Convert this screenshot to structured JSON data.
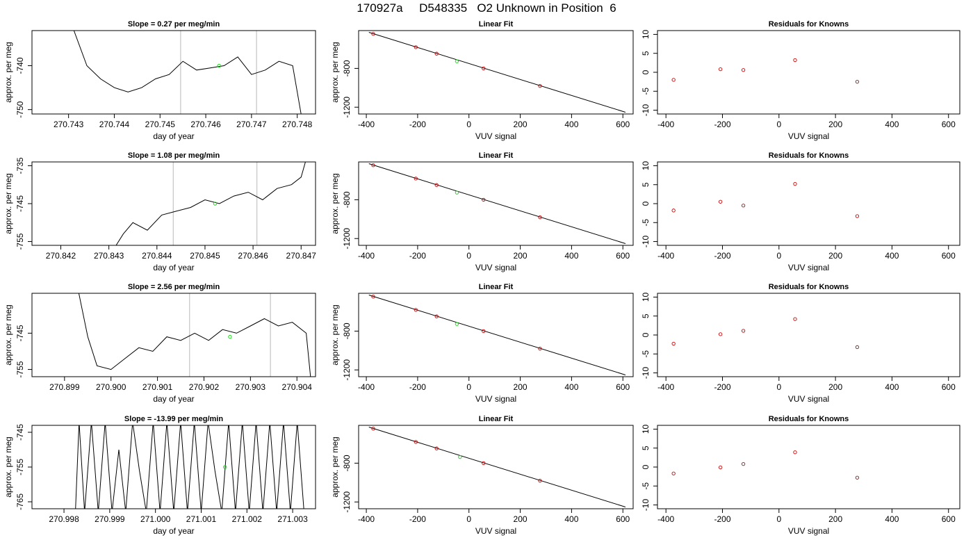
{
  "page": {
    "title": "170927a     D548335   O2 Unknown in Position  6"
  },
  "chart_data": [
    {
      "type": "line",
      "panel": "timeseries",
      "title": "Slope =  0.27  per meg/min",
      "xlabel": "day of year",
      "ylabel": "approx. per meg",
      "xlim": [
        270.7422,
        270.7484
      ],
      "ylim": [
        -751.0,
        -732.0
      ],
      "xticks": [
        270.743,
        270.744,
        270.745,
        270.746,
        270.747,
        270.748
      ],
      "xtick_labels": [
        "270.743",
        "270.744",
        "270.745",
        "270.746",
        "270.747",
        "270.748"
      ],
      "yticks": [
        -750,
        -740
      ],
      "ytick_labels": [
        "-750",
        "-740"
      ],
      "vlines": [
        270.74545,
        270.74711
      ],
      "marker": {
        "x": 270.74629,
        "y": -740.0,
        "color": "#00dd00"
      },
      "line_color": "#000000",
      "series": [
        {
          "x": [
            270.7431,
            270.7434,
            270.7437,
            270.744,
            270.7443,
            270.7446,
            270.7449,
            270.7452,
            270.7455,
            270.7458,
            270.7461,
            270.7464,
            270.7467,
            270.747,
            270.7473,
            270.7476,
            270.7479,
            270.7481
          ],
          "y": [
            -731.5,
            -740.0,
            -743.0,
            -745.0,
            -746.0,
            -745.0,
            -743.0,
            -742.0,
            -739.0,
            -741.0,
            -740.5,
            -740.0,
            -738.0,
            -742.0,
            -741.0,
            -739.0,
            -740.0,
            -752.0
          ]
        }
      ]
    },
    {
      "type": "scatter",
      "panel": "fit",
      "title": "Linear Fit",
      "xlabel": "VUV signal",
      "ylabel": "approx. per meg",
      "xlim": [
        -430,
        640
      ],
      "ylim": [
        -1270,
        -410
      ],
      "xticks": [
        -400,
        -200,
        0,
        200,
        400,
        600
      ],
      "xtick_labels": [
        "-400",
        "-200",
        "0",
        "200",
        "400",
        "600"
      ],
      "yticks": [
        -1200,
        -800
      ],
      "ytick_labels": [
        "-1200",
        "-800"
      ],
      "fit_line": {
        "x": [
          -390,
          610
        ],
        "y": [
          -428,
          -1252
        ]
      },
      "knowns": {
        "x": [
          -373,
          -207,
          -126,
          57,
          277
        ],
        "y": [
          -444,
          -581,
          -648,
          -800,
          -981
        ],
        "color": "#cc0000"
      },
      "unknown": {
        "x": -47,
        "y": -726,
        "color": "#00dd00"
      }
    },
    {
      "type": "scatter",
      "panel": "residuals",
      "title": "Residuals for Knowns",
      "xlabel": "VUV signal",
      "ylabel": "",
      "xlim": [
        -430,
        640
      ],
      "ylim": [
        -11,
        11
      ],
      "xticks": [
        -400,
        -200,
        0,
        200,
        400,
        600
      ],
      "xtick_labels": [
        "-400",
        "-200",
        "0",
        "200",
        "400",
        "600"
      ],
      "yticks": [
        -10,
        -5,
        0,
        5,
        10
      ],
      "ytick_labels": [
        "-10",
        "-5",
        "0",
        "5",
        "10"
      ],
      "points": {
        "x": [
          -373,
          -207,
          -126,
          57,
          277
        ],
        "y": [
          -2.0,
          0.8,
          0.6,
          3.2,
          -2.5
        ],
        "color": "#cc0000"
      }
    },
    {
      "type": "line",
      "panel": "timeseries",
      "title": "Slope =  1.08  per meg/min",
      "xlabel": "day of year",
      "ylabel": "approx. per meg",
      "xlim": [
        270.8414,
        270.8473
      ],
      "ylim": [
        -756.0,
        -734.0
      ],
      "xticks": [
        270.842,
        270.843,
        270.844,
        270.845,
        270.846,
        270.847
      ],
      "xtick_labels": [
        "270.842",
        "270.843",
        "270.844",
        "270.845",
        "270.846",
        "270.847"
      ],
      "yticks": [
        -755,
        -745,
        -735
      ],
      "ytick_labels": [
        "-755",
        "-745",
        "-735"
      ],
      "vlines": [
        270.84434,
        270.84608
      ],
      "marker": {
        "x": 270.84521,
        "y": -745.0,
        "color": "#00dd00"
      },
      "line_color": "#000000",
      "series": [
        {
          "x": [
            270.8431,
            270.8433,
            270.8435,
            270.8438,
            270.8441,
            270.8444,
            270.8447,
            270.845,
            270.8453,
            270.8456,
            270.8459,
            270.8462,
            270.8465,
            270.8468,
            270.847,
            270.8471
          ],
          "y": [
            -757.0,
            -753.0,
            -750.0,
            -752.0,
            -748.0,
            -747.0,
            -746.0,
            -744.0,
            -745.0,
            -743.0,
            -742.0,
            -744.0,
            -741.0,
            -740.0,
            -738.0,
            -733.5
          ]
        }
      ]
    },
    {
      "type": "scatter",
      "panel": "fit",
      "title": "Linear Fit",
      "xlabel": "VUV signal",
      "ylabel": "approx. per meg",
      "xlim": [
        -430,
        640
      ],
      "ylim": [
        -1270,
        -410
      ],
      "xticks": [
        -400,
        -200,
        0,
        200,
        400,
        600
      ],
      "xtick_labels": [
        "-400",
        "-200",
        "0",
        "200",
        "400",
        "600"
      ],
      "yticks": [
        -1200,
        -800
      ],
      "ytick_labels": [
        "-1200",
        "-800"
      ],
      "fit_line": {
        "x": [
          -390,
          610
        ],
        "y": [
          -428,
          -1252
        ]
      },
      "knowns": {
        "x": [
          -373,
          -207,
          -126,
          57,
          277
        ],
        "y": [
          -444,
          -581,
          -648,
          -800,
          -981
        ],
        "color": "#cc0000"
      },
      "unknown": {
        "x": -47,
        "y": -726,
        "color": "#00dd00"
      }
    },
    {
      "type": "scatter",
      "panel": "residuals",
      "title": "Residuals for Knowns",
      "xlabel": "VUV signal",
      "ylabel": "",
      "xlim": [
        -430,
        640
      ],
      "ylim": [
        -11,
        11
      ],
      "xticks": [
        -400,
        -200,
        0,
        200,
        400,
        600
      ],
      "xtick_labels": [
        "-400",
        "-200",
        "0",
        "200",
        "400",
        "600"
      ],
      "yticks": [
        -10,
        -5,
        0,
        5,
        10
      ],
      "ytick_labels": [
        "-10",
        "-5",
        "0",
        "5",
        "10"
      ],
      "points": {
        "x": [
          -373,
          -207,
          -126,
          57,
          277
        ],
        "y": [
          -1.8,
          0.5,
          -0.5,
          5.2,
          -3.3
        ],
        "color": "#cc0000"
      }
    },
    {
      "type": "line",
      "panel": "timeseries",
      "title": "Slope =  2.56  per meg/min",
      "xlabel": "day of year",
      "ylabel": "approx. per meg",
      "xlim": [
        270.8983,
        270.9044
      ],
      "ylim": [
        -757.0,
        -734.0
      ],
      "xticks": [
        270.899,
        270.9,
        270.901,
        270.902,
        270.903,
        270.904
      ],
      "xtick_labels": [
        "270.899",
        "270.900",
        "270.901",
        "270.902",
        "270.903",
        "270.904"
      ],
      "yticks": [
        -755,
        -745
      ],
      "ytick_labels": [
        "-755",
        "-745"
      ],
      "vlines": [
        270.90169,
        270.90343
      ],
      "marker": {
        "x": 270.90256,
        "y": -746.0,
        "color": "#00dd00"
      },
      "line_color": "#000000",
      "series": [
        {
          "x": [
            270.8993,
            270.8995,
            270.8997,
            270.9,
            270.9003,
            270.9006,
            270.9009,
            270.9012,
            270.9015,
            270.9018,
            270.9021,
            270.9024,
            270.9027,
            270.903,
            270.9033,
            270.9036,
            270.9039,
            270.9042,
            270.9043
          ],
          "y": [
            -733.5,
            -746.0,
            -754.0,
            -755.0,
            -752.0,
            -749.0,
            -750.0,
            -746.0,
            -747.0,
            -745.0,
            -747.0,
            -744.0,
            -745.0,
            -743.0,
            -741.0,
            -743.0,
            -742.0,
            -745.0,
            -758.0
          ]
        }
      ]
    },
    {
      "type": "scatter",
      "panel": "fit",
      "title": "Linear Fit",
      "xlabel": "VUV signal",
      "ylabel": "approx. per meg",
      "xlim": [
        -430,
        640
      ],
      "ylim": [
        -1270,
        -410
      ],
      "xticks": [
        -400,
        -200,
        0,
        200,
        400,
        600
      ],
      "xtick_labels": [
        "-400",
        "-200",
        "0",
        "200",
        "400",
        "600"
      ],
      "yticks": [
        -1200,
        -800
      ],
      "ytick_labels": [
        "-1200",
        "-800"
      ],
      "fit_line": {
        "x": [
          -390,
          610
        ],
        "y": [
          -428,
          -1252
        ]
      },
      "knowns": {
        "x": [
          -373,
          -207,
          -126,
          57,
          277
        ],
        "y": [
          -444,
          -581,
          -648,
          -800,
          -981
        ],
        "color": "#cc0000"
      },
      "unknown": {
        "x": -47,
        "y": -726,
        "color": "#00dd00"
      }
    },
    {
      "type": "scatter",
      "panel": "residuals",
      "title": "Residuals for Knowns",
      "xlabel": "VUV signal",
      "ylabel": "",
      "xlim": [
        -430,
        640
      ],
      "ylim": [
        -11,
        11
      ],
      "xticks": [
        -400,
        -200,
        0,
        200,
        400,
        600
      ],
      "xtick_labels": [
        "-400",
        "-200",
        "0",
        "200",
        "400",
        "600"
      ],
      "yticks": [
        -10,
        -5,
        0,
        5,
        10
      ],
      "ytick_labels": [
        "-10",
        "-5",
        "0",
        "5",
        "10"
      ],
      "points": {
        "x": [
          -373,
          -207,
          -126,
          57,
          277
        ],
        "y": [
          -2.3,
          0.2,
          1.1,
          4.2,
          -3.2
        ],
        "color": "#cc0000"
      }
    },
    {
      "type": "line",
      "panel": "timeseries",
      "title": "Slope =  -13.99  per meg/min",
      "xlabel": "day of year",
      "ylabel": "approx. per meg",
      "xlim": [
        270.9973,
        271.0035
      ],
      "ylim": [
        -767.0,
        -743.0
      ],
      "xticks": [
        270.998,
        270.999,
        271.0,
        271.001,
        271.002,
        271.003
      ],
      "xtick_labels": [
        "270.998",
        "270.999",
        "271.000",
        "271.001",
        "271.002",
        "271.003"
      ],
      "yticks": [
        -765,
        -755,
        -745
      ],
      "ytick_labels": [
        "-765",
        "-755",
        "-745"
      ],
      "vlines": [],
      "marker": {
        "x": 271.00152,
        "y": -755.0,
        "color": "#00dd00"
      },
      "line_color": "#000000",
      "series": [
        {
          "x": [
            270.99825,
            270.99833,
            270.99845,
            270.9986,
            270.99875,
            270.9989,
            270.99905,
            270.9992,
            270.99935,
            270.9995,
            270.99965,
            270.9998,
            270.99995,
            271.0001,
            271.00025,
            271.0004,
            271.00055,
            271.0007,
            271.00085,
            271.001,
            271.00115,
            271.0013,
            271.00145,
            271.0016,
            271.00175,
            271.0019,
            271.00205,
            271.0022,
            271.00235,
            271.0025,
            271.00265,
            271.0028,
            271.00295,
            271.0031,
            271.00325
          ],
          "y": [
            -768.0,
            -742.0,
            -768.0,
            -742.0,
            -768.0,
            -742.0,
            -768.0,
            -750.0,
            -768.0,
            -742.0,
            -756.0,
            -768.0,
            -742.0,
            -768.0,
            -742.0,
            -768.0,
            -742.0,
            -768.0,
            -742.0,
            -768.0,
            -742.0,
            -756.0,
            -768.0,
            -742.0,
            -768.0,
            -742.0,
            -768.0,
            -742.0,
            -768.0,
            -742.0,
            -768.0,
            -742.0,
            -768.0,
            -742.0,
            -768.0
          ]
        }
      ]
    },
    {
      "type": "scatter",
      "panel": "fit",
      "title": "Linear Fit",
      "xlabel": "VUV signal",
      "ylabel": "approx. per meg",
      "xlim": [
        -430,
        640
      ],
      "ylim": [
        -1270,
        -410
      ],
      "xticks": [
        -400,
        -200,
        0,
        200,
        400,
        600
      ],
      "xtick_labels": [
        "-400",
        "-200",
        "0",
        "200",
        "400",
        "600"
      ],
      "yticks": [
        -1200,
        -800
      ],
      "ytick_labels": [
        "-1200",
        "-800"
      ],
      "fit_line": {
        "x": [
          -390,
          610
        ],
        "y": [
          -428,
          -1252
        ]
      },
      "knowns": {
        "x": [
          -373,
          -207,
          -126,
          57,
          277
        ],
        "y": [
          -444,
          -581,
          -648,
          -800,
          -981
        ],
        "color": "#cc0000"
      },
      "unknown": {
        "x": -35,
        "y": -737,
        "color": "#00dd00"
      }
    },
    {
      "type": "scatter",
      "panel": "residuals",
      "title": "Residuals for Knowns",
      "xlabel": "VUV signal",
      "ylabel": "",
      "xlim": [
        -430,
        640
      ],
      "ylim": [
        -11,
        11
      ],
      "xticks": [
        -400,
        -200,
        0,
        200,
        400,
        600
      ],
      "xtick_labels": [
        "-400",
        "-200",
        "0",
        "200",
        "400",
        "600"
      ],
      "yticks": [
        -10,
        -5,
        0,
        5,
        10
      ],
      "ytick_labels": [
        "-10",
        "-5",
        "0",
        "5",
        "10"
      ],
      "points": {
        "x": [
          -373,
          -207,
          -126,
          57,
          277
        ],
        "y": [
          -1.7,
          -0.1,
          0.8,
          3.9,
          -2.8
        ],
        "color": "#cc0000"
      }
    }
  ]
}
